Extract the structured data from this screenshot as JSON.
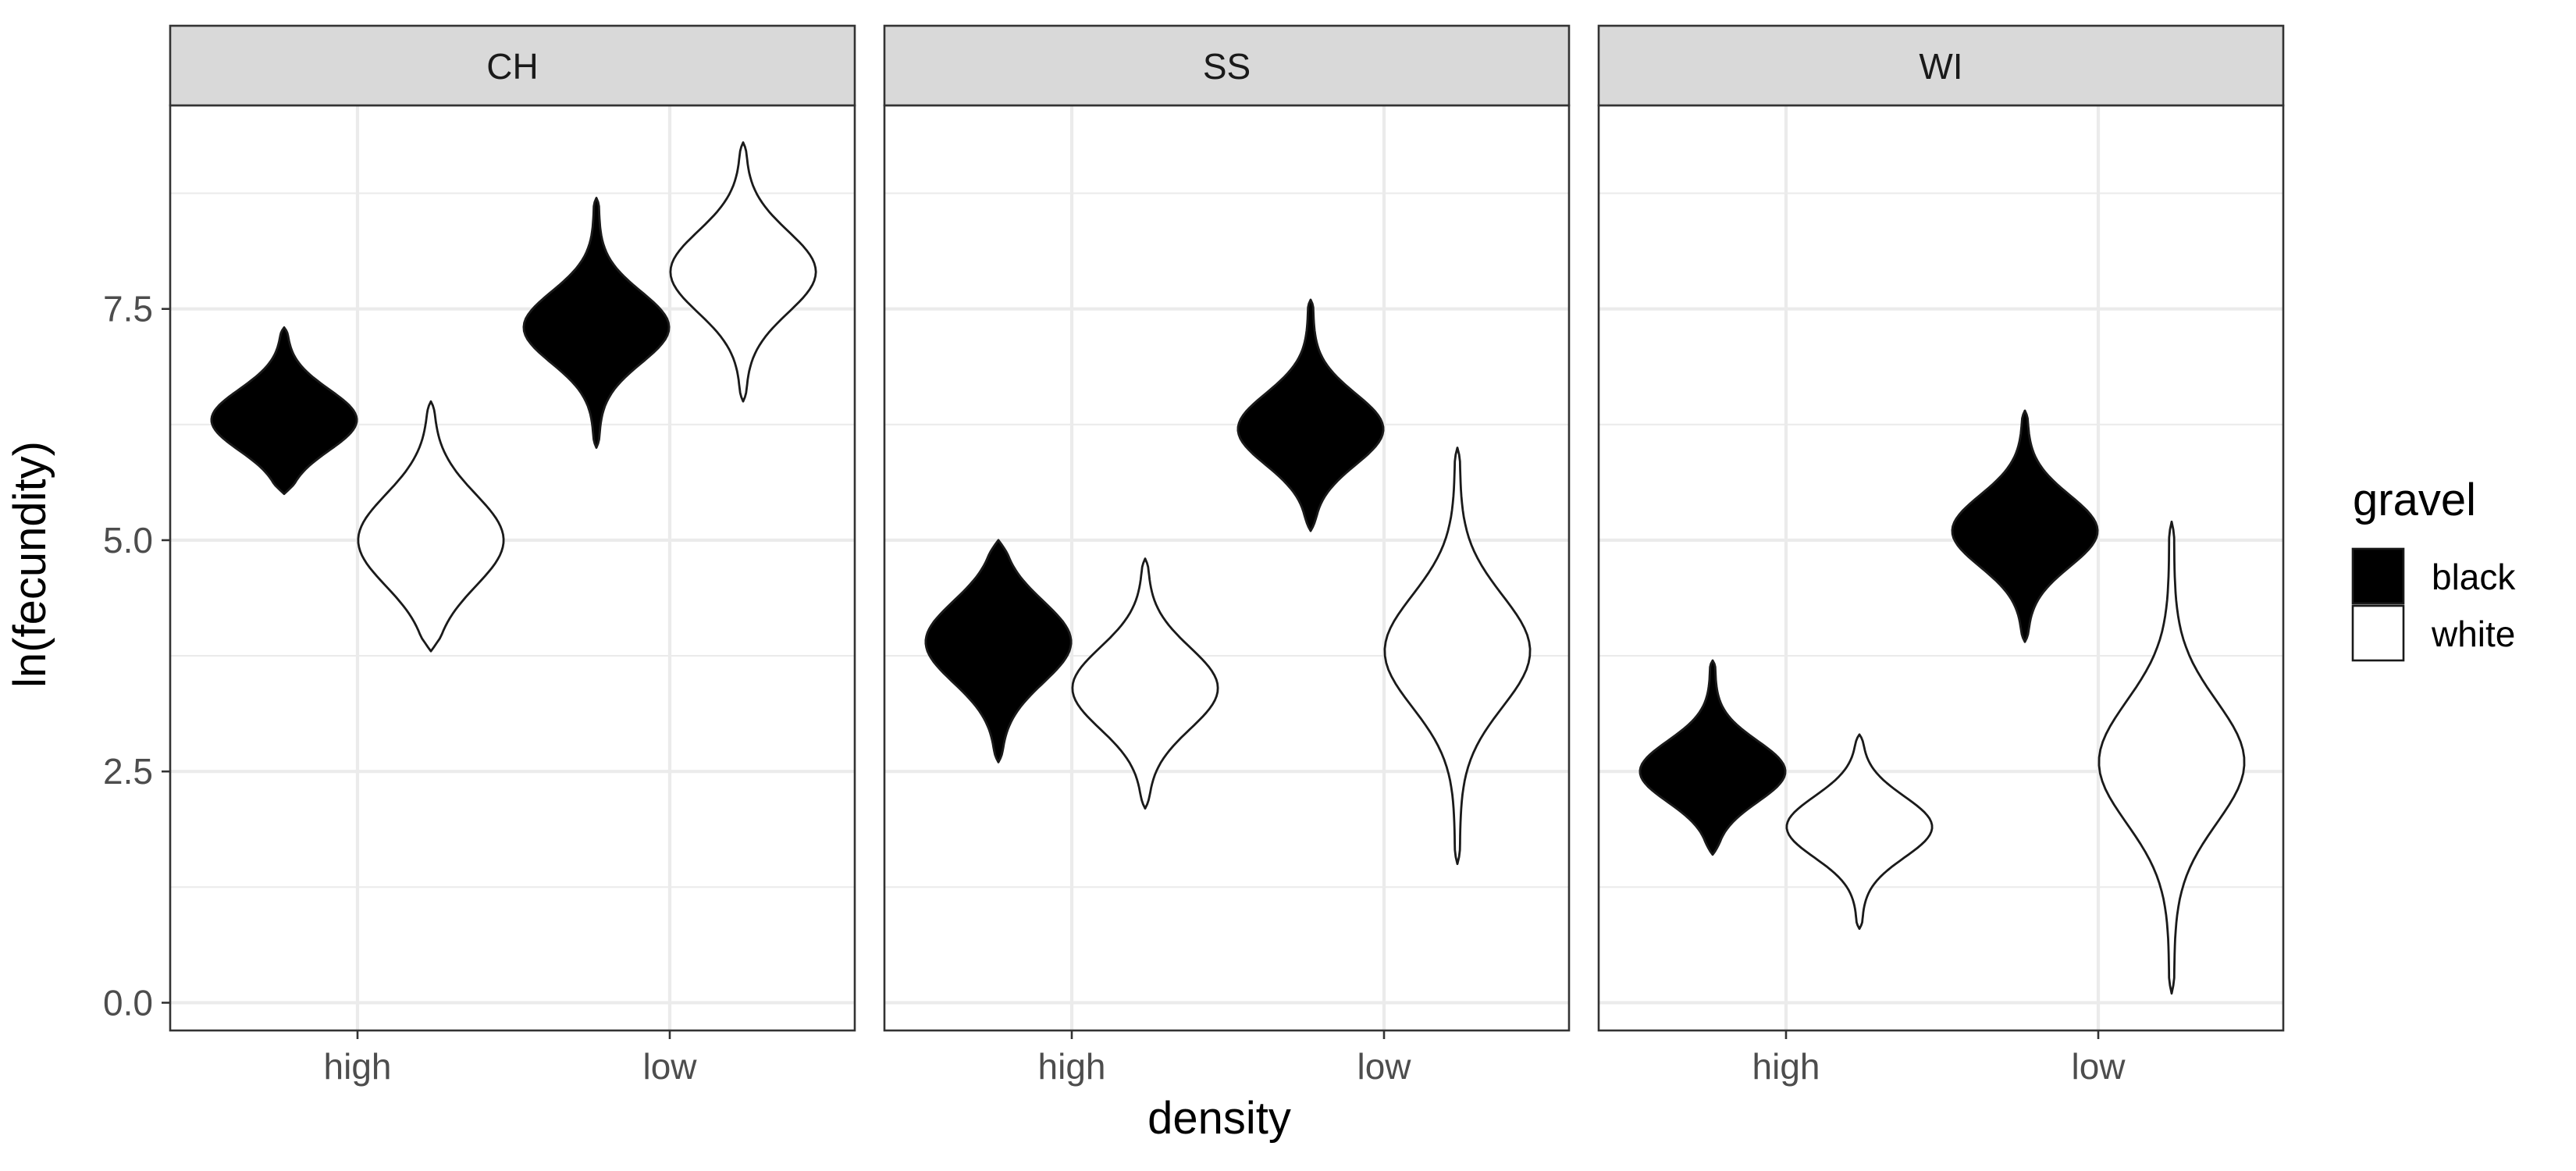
{
  "chart_data": {
    "type": "violin",
    "xlabel": "density",
    "ylabel": "ln(fecundity)",
    "ylim": [
      -0.3,
      9.7
    ],
    "y_ticks": [
      "0.0",
      "2.5",
      "5.0",
      "7.5"
    ],
    "y_tick_values": [
      0.0,
      2.5,
      5.0,
      7.5
    ],
    "categories": [
      "high",
      "low"
    ],
    "facets": [
      "CH",
      "SS",
      "WI"
    ],
    "grid": true,
    "legend": {
      "title": "gravel",
      "position": "right",
      "entries": [
        {
          "label": "black",
          "fill": "#000000"
        },
        {
          "label": "white",
          "fill": "#ffffff"
        }
      ]
    },
    "series": [
      {
        "facet": "CH",
        "density": "high",
        "gravel": "black",
        "min": 5.5,
        "max": 7.3,
        "center": 6.3,
        "spread": 0.6
      },
      {
        "facet": "CH",
        "density": "high",
        "gravel": "white",
        "min": 3.8,
        "max": 6.5,
        "center": 5.0,
        "spread": 0.9
      },
      {
        "facet": "CH",
        "density": "low",
        "gravel": "black",
        "min": 6.0,
        "max": 8.7,
        "center": 7.3,
        "spread": 0.7
      },
      {
        "facet": "CH",
        "density": "low",
        "gravel": "white",
        "min": 6.5,
        "max": 9.3,
        "center": 7.9,
        "spread": 0.8
      },
      {
        "facet": "SS",
        "density": "high",
        "gravel": "black",
        "min": 2.6,
        "max": 5.0,
        "center": 3.9,
        "spread": 0.8
      },
      {
        "facet": "SS",
        "density": "high",
        "gravel": "white",
        "min": 2.1,
        "max": 4.8,
        "center": 3.4,
        "spread": 0.8
      },
      {
        "facet": "SS",
        "density": "low",
        "gravel": "black",
        "min": 5.1,
        "max": 7.6,
        "center": 6.2,
        "spread": 0.7
      },
      {
        "facet": "SS",
        "density": "low",
        "gravel": "white",
        "min": 1.5,
        "max": 6.0,
        "center": 3.8,
        "spread": 1.1
      },
      {
        "facet": "WI",
        "density": "high",
        "gravel": "black",
        "min": 1.6,
        "max": 3.7,
        "center": 2.5,
        "spread": 0.6
      },
      {
        "facet": "WI",
        "density": "high",
        "gravel": "white",
        "min": 0.8,
        "max": 2.9,
        "center": 1.9,
        "spread": 0.6
      },
      {
        "facet": "WI",
        "density": "low",
        "gravel": "black",
        "min": 3.9,
        "max": 6.4,
        "center": 5.1,
        "spread": 0.7
      },
      {
        "facet": "WI",
        "density": "low",
        "gravel": "white",
        "min": 0.1,
        "max": 5.2,
        "center": 2.6,
        "spread": 1.2
      }
    ]
  }
}
